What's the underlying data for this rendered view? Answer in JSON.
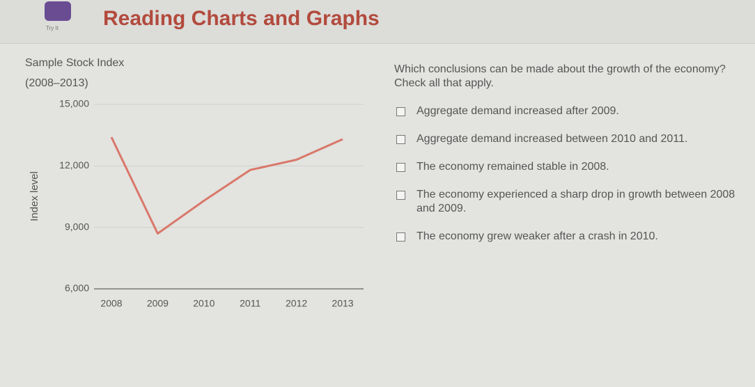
{
  "header": {
    "icon_label": "Try It",
    "title": "Reading Charts and Graphs"
  },
  "chart_data": {
    "type": "line",
    "title": "Sample Stock Index",
    "subtitle": "(2008–2013)",
    "y_label": "Index level",
    "x": [
      2008,
      2009,
      2010,
      2011,
      2012,
      2013
    ],
    "values": [
      13400,
      8700,
      10300,
      11800,
      12300,
      13300
    ],
    "color": "#d9786a",
    "xlim": [
      2008,
      2013
    ],
    "xticks": [
      2008,
      2009,
      2010,
      2011,
      2012,
      2013
    ],
    "ylim": [
      6000,
      15000
    ],
    "yticks": [
      {
        "value": 6000,
        "label": "6,000"
      },
      {
        "value": 9000,
        "label": "9,000"
      },
      {
        "value": 12000,
        "label": "12,000"
      },
      {
        "value": 15000,
        "label": "15,000"
      }
    ],
    "grid": true
  },
  "question": {
    "prompt": "Which conclusions can be made about the growth of the economy? Check all that apply.",
    "options": [
      "Aggregate demand increased after 2009.",
      "Aggregate demand increased between 2010 and 2011.",
      "The economy remained stable in 2008.",
      "The economy experienced a sharp drop in growth between 2008 and 2009.",
      "The economy grew weaker after a crash in 2010."
    ]
  }
}
